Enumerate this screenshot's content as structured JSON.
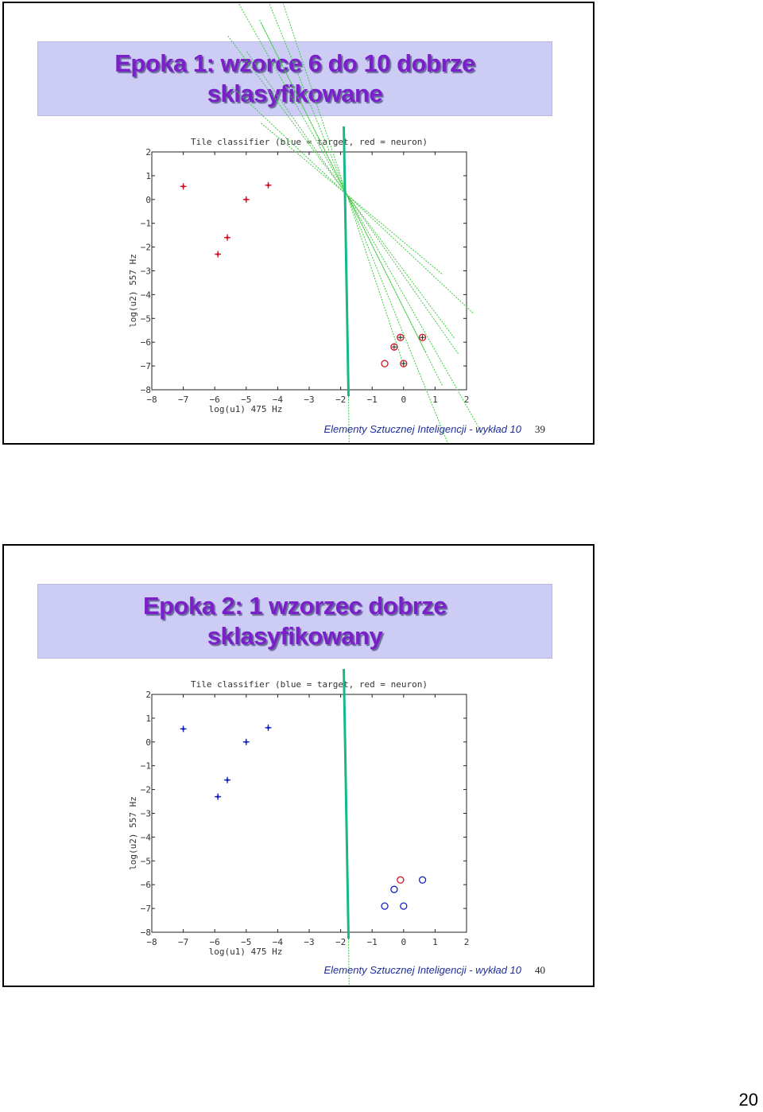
{
  "slides": [
    {
      "title_lines": [
        "Epoka 1: wzorce 6 do 10 dobrze",
        "sklasyfikowane"
      ],
      "footer": "Elementy Sztucznej Inteligencji - wykład 10",
      "slide_number": "39",
      "chart_data": {
        "type": "scatter",
        "title": "Tile classifier (blue = target, red = neuron)",
        "xlabel": "log(u1) 475 Hz",
        "ylabel": "log(u2) 557 Hz",
        "xlim": [
          -8,
          2
        ],
        "ylim": [
          -8,
          2
        ],
        "xticks": [
          "−8",
          "−7",
          "−6",
          "−5",
          "−4",
          "−3",
          "−2",
          "−1",
          "0",
          "1",
          "2"
        ],
        "yticks": [
          "2",
          "1",
          "0",
          "−1",
          "−2",
          "−3",
          "−4",
          "−5",
          "−6",
          "−7",
          "−8"
        ],
        "series": [
          {
            "marker": "plus",
            "color": "#d01020",
            "points": [
              [
                -7,
                0.55
              ],
              [
                -5,
                0
              ],
              [
                -4.3,
                0.6
              ],
              [
                -5.6,
                -1.6
              ],
              [
                -5.9,
                -2.3
              ]
            ]
          },
          {
            "marker": "circle",
            "color": "#d01020",
            "points": [
              [
                -0.1,
                -5.8
              ],
              [
                0.6,
                -5.8
              ],
              [
                -0.3,
                -6.2
              ],
              [
                -0.6,
                -6.9
              ],
              [
                0,
                -6.9
              ]
            ]
          }
        ],
        "overlay_markers": [
          {
            "marker": "plus",
            "color": "#222",
            "points": [
              [
                -0.1,
                -5.8
              ],
              [
                0.6,
                -5.8
              ],
              [
                -0.3,
                -6.2
              ],
              [
                0,
                -6.9
              ]
            ]
          }
        ],
        "boundary_color": "#16b88a",
        "guide_color": "#3ccc3c"
      }
    },
    {
      "title_lines": [
        "Epoka 2: 1 wzorzec dobrze",
        "sklasyfikowany"
      ],
      "footer": "Elementy Sztucznej Inteligencji - wykład 10",
      "slide_number": "40",
      "chart_data": {
        "type": "scatter",
        "title": "Tile classifier (blue = target, red = neuron)",
        "xlabel": "log(u1) 475 Hz",
        "ylabel": "log(u2) 557 Hz",
        "xlim": [
          -8,
          2
        ],
        "ylim": [
          -8,
          2
        ],
        "xticks": [
          "−8",
          "−7",
          "−6",
          "−5",
          "−4",
          "−3",
          "−2",
          "−1",
          "0",
          "1",
          "2"
        ],
        "yticks": [
          "2",
          "1",
          "0",
          "−1",
          "−2",
          "−3",
          "−4",
          "−5",
          "−6",
          "−7",
          "−8"
        ],
        "series": [
          {
            "marker": "plus",
            "color": "#1020c0",
            "points": [
              [
                -7,
                0.55
              ],
              [
                -5,
                0
              ],
              [
                -4.3,
                0.6
              ],
              [
                -5.6,
                -1.6
              ],
              [
                -5.9,
                -2.3
              ]
            ]
          },
          {
            "marker": "circle",
            "color": "#1020c0",
            "points": [
              [
                0.6,
                -5.8
              ],
              [
                -0.3,
                -6.2
              ],
              [
                -0.6,
                -6.9
              ],
              [
                0,
                -6.9
              ]
            ]
          },
          {
            "marker": "circle",
            "color": "#d01020",
            "points": [
              [
                -0.1,
                -5.8
              ]
            ]
          }
        ],
        "overlay_markers": [],
        "boundary_color": "#16b88a",
        "guide_color": "#3ccc3c"
      }
    }
  ],
  "page_number": "20"
}
